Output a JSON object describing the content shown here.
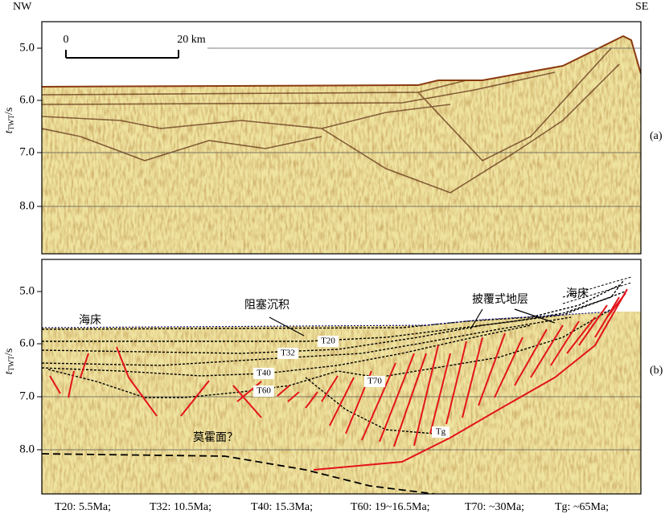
{
  "header": {
    "left": "NW",
    "right": "SE"
  },
  "scale_bar": {
    "start": "0",
    "end": "20 km"
  },
  "panels": [
    {
      "label": "(a)",
      "axis_label": {
        "symbol": "t",
        "subscript": "TWT",
        "unit": "/s"
      },
      "ticks": [
        "5.0",
        "6.0",
        "7.0",
        "8.0"
      ]
    },
    {
      "label": "(b)",
      "axis_label": {
        "symbol": "t",
        "subscript": "TWT",
        "unit": "/s"
      },
      "ticks": [
        "5.0",
        "6.0",
        "7.0",
        "8.0"
      ],
      "annotations": {
        "seafloor_left": "海床",
        "seafloor_right": "海床",
        "blocked": "阻塞沉积",
        "drape": "披覆式地层",
        "moho": "莫霍面？"
      },
      "horizons": [
        "T20",
        "T32",
        "T40",
        "T60",
        "T70",
        "Tg"
      ]
    }
  ],
  "legend": [
    "T20: 5.5Ma;",
    "T32: 10.5Ma;",
    "T40: 15.3Ma;",
    "T60: 19~16.5Ma;",
    "T70: ~30Ma;",
    "Tg: ~65Ma;"
  ]
}
